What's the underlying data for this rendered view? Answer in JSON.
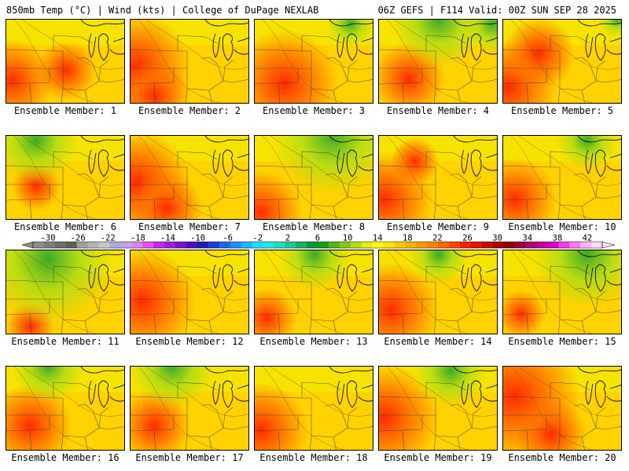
{
  "header": {
    "left": "850mb Temp (°C) | Wind (kts) | College of DuPage NEXLAB",
    "right": "06Z GEFS | F114 Valid: 00Z SUN SEP 28 2025"
  },
  "member_prefix": "Ensemble Member: ",
  "members": [
    {
      "number": "1",
      "label": "Ensemble Member: 1",
      "warm_blobs": [
        [
          0.05,
          0.72,
          0.35
        ],
        [
          0.5,
          0.6,
          0.25
        ]
      ],
      "cool_blobs": []
    },
    {
      "number": "2",
      "label": "Ensemble Member: 2",
      "warm_blobs": [
        [
          0.05,
          0.55,
          0.45
        ],
        [
          0.2,
          0.9,
          0.3
        ]
      ],
      "cool_blobs": []
    },
    {
      "number": "3",
      "label": "Ensemble Member: 3",
      "warm_blobs": [
        [
          0.25,
          0.75,
          0.45
        ]
      ],
      "cool_blobs": [
        [
          0.8,
          0.05,
          0.2
        ]
      ]
    },
    {
      "number": "4",
      "label": "Ensemble Member: 4",
      "warm_blobs": [
        [
          0.25,
          0.7,
          0.3
        ]
      ],
      "cool_blobs": [
        [
          0.5,
          0.0,
          0.4
        ],
        [
          0.95,
          0.05,
          0.25
        ]
      ]
    },
    {
      "number": "5",
      "label": "Ensemble Member: 5",
      "warm_blobs": [
        [
          0.05,
          0.8,
          0.4
        ],
        [
          0.3,
          0.4,
          0.3
        ]
      ],
      "cool_blobs": [
        [
          0.95,
          0.0,
          0.15
        ]
      ]
    },
    {
      "number": "6",
      "label": "Ensemble Member: 6",
      "warm_blobs": [
        [
          0.25,
          0.6,
          0.2
        ]
      ],
      "cool_blobs": [
        [
          0.25,
          0.05,
          0.35
        ]
      ]
    },
    {
      "number": "7",
      "label": "Ensemble Member: 7",
      "warm_blobs": [
        [
          0.05,
          0.55,
          0.45
        ],
        [
          0.3,
          0.85,
          0.3
        ]
      ],
      "cool_blobs": []
    },
    {
      "number": "8",
      "label": "Ensemble Member: 8",
      "warm_blobs": [
        [
          0.05,
          0.9,
          0.35
        ]
      ],
      "cool_blobs": [
        [
          0.65,
          0.0,
          0.5
        ]
      ]
    },
    {
      "number": "9",
      "label": "Ensemble Member: 9",
      "warm_blobs": [
        [
          0.05,
          0.75,
          0.4
        ],
        [
          0.3,
          0.3,
          0.2
        ]
      ],
      "cool_blobs": []
    },
    {
      "number": "10",
      "label": "Ensemble Member: 10",
      "warm_blobs": [
        [
          0.1,
          0.75,
          0.35
        ]
      ],
      "cool_blobs": [
        [
          0.7,
          0.05,
          0.25
        ]
      ]
    },
    {
      "number": "11",
      "label": "Ensemble Member: 11",
      "warm_blobs": [
        [
          0.2,
          0.9,
          0.2
        ]
      ],
      "cool_blobs": [
        [
          0.35,
          0.1,
          0.55
        ]
      ]
    },
    {
      "number": "12",
      "label": "Ensemble Member: 12",
      "warm_blobs": [
        [
          0.1,
          0.6,
          0.45
        ]
      ],
      "cool_blobs": []
    },
    {
      "number": "13",
      "label": "Ensemble Member: 13",
      "warm_blobs": [
        [
          0.1,
          0.8,
          0.25
        ]
      ],
      "cool_blobs": [
        [
          0.5,
          0.05,
          0.3
        ]
      ]
    },
    {
      "number": "14",
      "label": "Ensemble Member: 14",
      "warm_blobs": [
        [
          0.1,
          0.7,
          0.4
        ]
      ],
      "cool_blobs": [
        [
          0.5,
          0.05,
          0.25
        ]
      ]
    },
    {
      "number": "15",
      "label": "Ensemble Member: 15",
      "warm_blobs": [
        [
          0.15,
          0.75,
          0.2
        ]
      ],
      "cool_blobs": [
        [
          0.7,
          0.05,
          0.45
        ]
      ]
    },
    {
      "number": "16",
      "label": "Ensemble Member: 16",
      "warm_blobs": [
        [
          0.2,
          0.7,
          0.35
        ]
      ],
      "cool_blobs": [
        [
          0.35,
          0.0,
          0.3
        ]
      ]
    },
    {
      "number": "17",
      "label": "Ensemble Member: 17",
      "warm_blobs": [
        [
          0.2,
          0.7,
          0.3
        ]
      ],
      "cool_blobs": [
        [
          0.35,
          0.0,
          0.35
        ]
      ]
    },
    {
      "number": "18",
      "label": "Ensemble Member: 18",
      "warm_blobs": [
        [
          0.05,
          0.75,
          0.4
        ]
      ],
      "cool_blobs": []
    },
    {
      "number": "19",
      "label": "Ensemble Member: 19",
      "warm_blobs": [
        [
          0.05,
          0.6,
          0.45
        ]
      ],
      "cool_blobs": [
        [
          0.6,
          0.05,
          0.3
        ]
      ]
    },
    {
      "number": "20",
      "label": "Ensemble Member: 20",
      "warm_blobs": [
        [
          0.1,
          0.35,
          0.55
        ],
        [
          0.4,
          0.8,
          0.3
        ]
      ],
      "cool_blobs": []
    }
  ],
  "colorbar": {
    "min": -32,
    "max": 44,
    "tick_labels": [
      "-30",
      "-26",
      "-22",
      "-18",
      "-14",
      "-10",
      "-6",
      "-2",
      "2",
      "6",
      "10",
      "14",
      "18",
      "22",
      "26",
      "30",
      "34",
      "38",
      "42"
    ],
    "colors": [
      "#8c8c8c",
      "#7d7d7d",
      "#6e6e6e",
      "#5f5f5f",
      "#a0a0a0",
      "#b4b4b4",
      "#c8c8c8",
      "#aaaadc",
      "#c8a0e6",
      "#dc82f0",
      "#e650f0",
      "#c828e6",
      "#a01edc",
      "#7814c8",
      "#500ac8",
      "#1e1eb4",
      "#1e3cdc",
      "#1e64f0",
      "#1e8cff",
      "#1eb4ff",
      "#1edcff",
      "#1eeaea",
      "#1edcbe",
      "#1ec896",
      "#14b464",
      "#0a963c",
      "#14a014",
      "#50b414",
      "#82c814",
      "#b4dc14",
      "#dcf014",
      "#ffff00",
      "#ffe600",
      "#ffcd00",
      "#ffb400",
      "#ff9b00",
      "#ff8200",
      "#ff6400",
      "#ff4600",
      "#ff1e00",
      "#e61400",
      "#c80a00",
      "#aa0000",
      "#8c0000",
      "#a0003c",
      "#b4006e",
      "#c800a0",
      "#dc00c8",
      "#f03cdc",
      "#ff78f0",
      "#ffb4ff",
      "#ffdcff"
    ]
  },
  "palette": {
    "field_base": "#ffd200",
    "warm": "#ff6e00",
    "hot": "#ff2a00",
    "cool": "#b4dc14",
    "cold": "#3caa28",
    "lines": "#333333"
  }
}
